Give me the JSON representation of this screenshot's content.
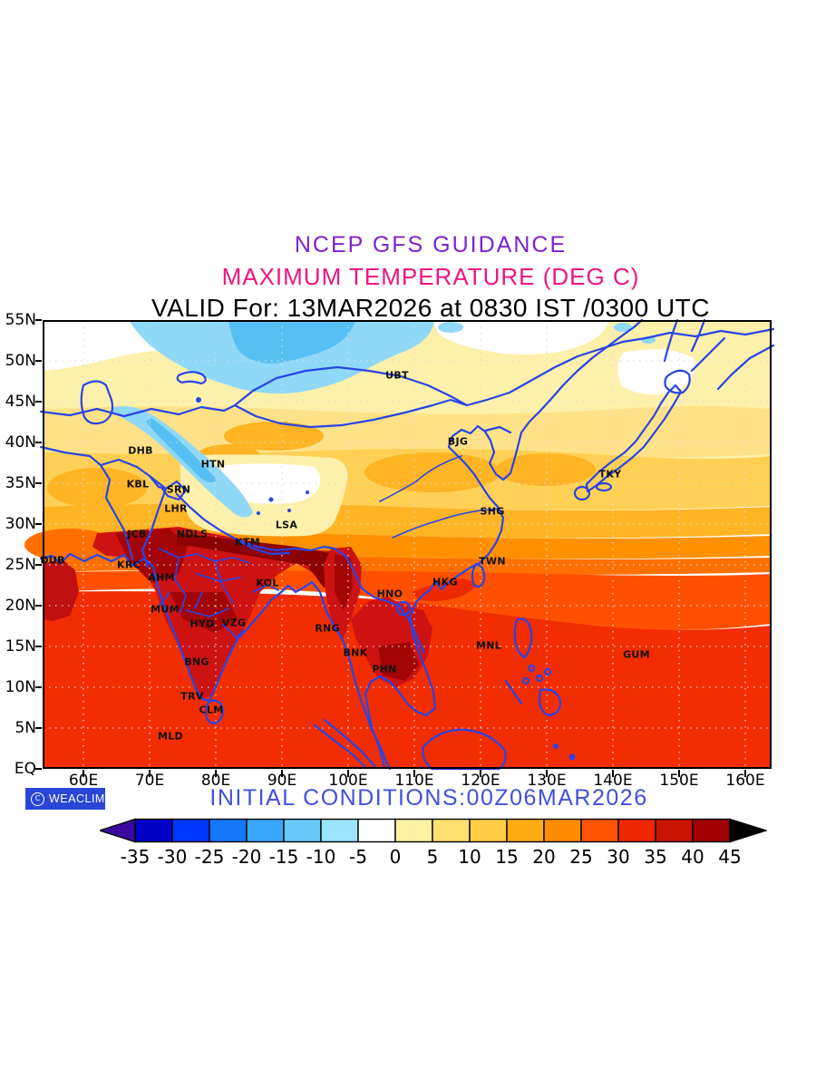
{
  "titles": {
    "line1": "NCEP GFS GUIDANCE",
    "line2": "MAXIMUM TEMPERATURE (DEG C)",
    "line3": "VALID For: 13MAR2026 at 0830 IST /0300 UTC"
  },
  "footer": {
    "initial_conditions": "INITIAL CONDITIONS:00Z06MAR2026",
    "logo_text": "WEACLIM",
    "logo_symbol": "C"
  },
  "colors": {
    "title1": "#7f22cc",
    "title2": "#f01480",
    "initial_conditions": "#4050e0",
    "logo_bg": "#2946d8",
    "coast_line": "#2845e6"
  },
  "map": {
    "lat_labels": [
      [
        "55N",
        0
      ],
      [
        "50N",
        45
      ],
      [
        "45N",
        90
      ],
      [
        "40N",
        135
      ],
      [
        "35N",
        180
      ],
      [
        "30N",
        225
      ],
      [
        "25N",
        270
      ],
      [
        "20N",
        315
      ],
      [
        "15N",
        360
      ],
      [
        "10N",
        405
      ],
      [
        "5N",
        450
      ],
      [
        "EQ",
        495
      ]
    ],
    "lon_labels": [
      [
        "60E",
        45
      ],
      [
        "70E",
        118
      ],
      [
        "80E",
        191
      ],
      [
        "90E",
        264
      ],
      [
        "100E",
        337
      ],
      [
        "110E",
        410
      ],
      [
        "120E",
        483
      ],
      [
        "130E",
        556
      ],
      [
        "140E",
        629
      ],
      [
        "150E",
        702
      ],
      [
        "160E",
        775
      ]
    ],
    "stations": [
      [
        "UBT",
        391,
        61
      ],
      [
        "DHB",
        108,
        144
      ],
      [
        "HTN",
        188,
        159
      ],
      [
        "KBL",
        105,
        181
      ],
      [
        "SRN",
        150,
        187
      ],
      [
        "LHR",
        147,
        208
      ],
      [
        "BJG",
        458,
        134
      ],
      [
        "TKY",
        626,
        170
      ],
      [
        "SHG",
        496,
        211
      ],
      [
        "JCB",
        104,
        236
      ],
      [
        "NDLS",
        165,
        236
      ],
      [
        "KTM",
        226,
        245
      ],
      [
        "LSA",
        269,
        226
      ],
      [
        "DUB",
        11,
        265
      ],
      [
        "KRC",
        95,
        270
      ],
      [
        "AHM",
        131,
        284
      ],
      [
        "KOL",
        248,
        290
      ],
      [
        "TWN",
        496,
        266
      ],
      [
        "HKG",
        444,
        289
      ],
      [
        "HNO",
        383,
        302
      ],
      [
        "MUM",
        135,
        319
      ],
      [
        "HYD",
        176,
        335
      ],
      [
        "VZG",
        211,
        334
      ],
      [
        "RNG",
        314,
        340
      ],
      [
        "MNL",
        492,
        359
      ],
      [
        "BNK",
        345,
        367
      ],
      [
        "GUM",
        655,
        369
      ],
      [
        "PHN",
        377,
        385
      ],
      [
        "BNG",
        170,
        377
      ],
      [
        "TRV",
        165,
        415
      ],
      [
        "CLM",
        186,
        430
      ],
      [
        "MLD",
        141,
        459
      ]
    ]
  },
  "colorbar": {
    "tick_labels": [
      "-35",
      "-30",
      "-25",
      "-20",
      "-15",
      "-10",
      "-5",
      "0",
      "5",
      "10",
      "15",
      "20",
      "25",
      "30",
      "35",
      "40",
      "45"
    ],
    "segment_colors": [
      "#0000c8",
      "#0038ff",
      "#1478f8",
      "#3aa6fc",
      "#68c8fc",
      "#9ce4fc",
      "#ffffff",
      "#fff0a2",
      "#ffe170",
      "#ffce44",
      "#ffac14",
      "#ff8c00",
      "#ff5400",
      "#ee2800",
      "#c81400",
      "#a00000"
    ],
    "left_arrow_color": "#3a0aa0",
    "right_arrow_color": "#000000"
  },
  "chart_data": {
    "type": "heatmap",
    "title": "MAXIMUM TEMPERATURE (DEG C)",
    "source_header": "NCEP GFS GUIDANCE",
    "valid_for": "13MAR2026 at 0830 IST /0300 UTC",
    "initial_conditions": "00Z06MAR2026",
    "units": "DEG C",
    "scale_values": [
      -35,
      -30,
      -25,
      -20,
      -15,
      -10,
      -5,
      0,
      5,
      10,
      15,
      20,
      25,
      30,
      35,
      40,
      45
    ],
    "x_axis_ticks": [
      "60E",
      "70E",
      "80E",
      "90E",
      "100E",
      "110E",
      "120E",
      "130E",
      "140E",
      "150E",
      "160E"
    ],
    "y_axis_ticks": [
      "EQ",
      "5N",
      "10N",
      "15N",
      "20N",
      "25N",
      "30N",
      "35N",
      "40N",
      "45N",
      "50N",
      "55N"
    ],
    "station_codes": [
      "UBT",
      "DHB",
      "HTN",
      "KBL",
      "SRN",
      "LHR",
      "BJG",
      "TKY",
      "SHG",
      "JCB",
      "NDLS",
      "KTM",
      "LSA",
      "DUB",
      "KRC",
      "AHM",
      "KOL",
      "TWN",
      "HKG",
      "HNO",
      "MUM",
      "HYD",
      "VZG",
      "RNG",
      "MNL",
      "BNK",
      "GUM",
      "PHN",
      "BNG",
      "TRV",
      "CLM",
      "MLD"
    ]
  }
}
